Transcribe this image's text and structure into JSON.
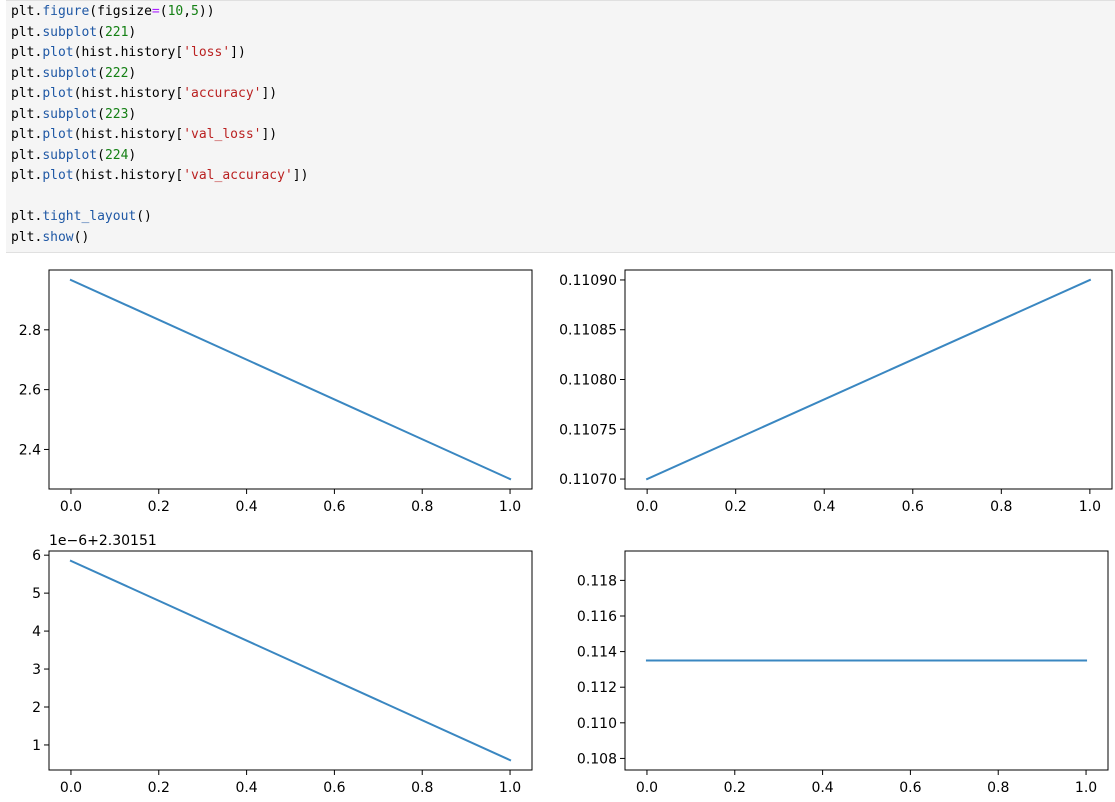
{
  "code_cell": {
    "lines": [
      [
        [
          "obj",
          "plt."
        ],
        [
          "func",
          "figure"
        ],
        [
          "brack",
          "("
        ],
        [
          "obj",
          "figsize"
        ],
        [
          "op",
          "="
        ],
        [
          "brack",
          "("
        ],
        [
          "num",
          "10"
        ],
        [
          "obj",
          ","
        ],
        [
          "num",
          "5"
        ],
        [
          "brack",
          "))"
        ]
      ],
      [
        [
          "obj",
          "plt."
        ],
        [
          "func",
          "subplot"
        ],
        [
          "brack",
          "("
        ],
        [
          "num",
          "221"
        ],
        [
          "brack",
          ")"
        ]
      ],
      [
        [
          "obj",
          "plt."
        ],
        [
          "func",
          "plot"
        ],
        [
          "brack",
          "("
        ],
        [
          "obj",
          "hist.history"
        ],
        [
          "brack",
          "["
        ],
        [
          "str",
          "'loss'"
        ],
        [
          "brack",
          "])"
        ]
      ],
      [
        [
          "obj",
          "plt."
        ],
        [
          "func",
          "subplot"
        ],
        [
          "brack",
          "("
        ],
        [
          "num",
          "222"
        ],
        [
          "brack",
          ")"
        ]
      ],
      [
        [
          "obj",
          "plt."
        ],
        [
          "func",
          "plot"
        ],
        [
          "brack",
          "("
        ],
        [
          "obj",
          "hist.history"
        ],
        [
          "brack",
          "["
        ],
        [
          "str",
          "'accuracy'"
        ],
        [
          "brack",
          "])"
        ]
      ],
      [
        [
          "obj",
          "plt."
        ],
        [
          "func",
          "subplot"
        ],
        [
          "brack",
          "("
        ],
        [
          "num",
          "223"
        ],
        [
          "brack",
          ")"
        ]
      ],
      [
        [
          "obj",
          "plt."
        ],
        [
          "func",
          "plot"
        ],
        [
          "brack",
          "("
        ],
        [
          "obj",
          "hist.history"
        ],
        [
          "brack",
          "["
        ],
        [
          "str",
          "'val_loss'"
        ],
        [
          "brack",
          "])"
        ]
      ],
      [
        [
          "obj",
          "plt."
        ],
        [
          "func",
          "subplot"
        ],
        [
          "brack",
          "("
        ],
        [
          "num",
          "224"
        ],
        [
          "brack",
          ")"
        ]
      ],
      [
        [
          "obj",
          "plt."
        ],
        [
          "func",
          "plot"
        ],
        [
          "brack",
          "("
        ],
        [
          "obj",
          "hist.history"
        ],
        [
          "brack",
          "["
        ],
        [
          "str",
          "'val_accuracy'"
        ],
        [
          "brack",
          "])"
        ]
      ],
      [],
      [
        [
          "obj",
          "plt."
        ],
        [
          "func",
          "tight_layout"
        ],
        [
          "brack",
          "()"
        ]
      ],
      [
        [
          "obj",
          "plt."
        ],
        [
          "func",
          "show"
        ],
        [
          "brack",
          "()"
        ]
      ]
    ]
  },
  "colors": {
    "line": "#3a87c1",
    "axes": "#000000",
    "code_background": "#f5f5f5"
  },
  "chart_data": [
    {
      "type": "line",
      "title": "",
      "xlabel": "",
      "ylabel": "",
      "x": [
        0.0,
        1.0
      ],
      "series": [
        {
          "values": [
            2.9666,
            2.3011
          ]
        }
      ],
      "xlim": [
        -0.05,
        1.05
      ],
      "ylim": [
        2.2678,
        3.0
      ],
      "xticks": [
        0.0,
        0.2,
        0.4,
        0.6,
        0.8,
        1.0
      ],
      "xtick_labels": [
        "0.0",
        "0.2",
        "0.4",
        "0.6",
        "0.8",
        "1.0"
      ],
      "yticks": [
        2.4,
        2.6,
        2.8
      ],
      "ytick_labels": [
        "2.4",
        "2.6",
        "2.8"
      ],
      "offset_text": "",
      "grid": false
    },
    {
      "type": "line",
      "title": "",
      "xlabel": "",
      "ylabel": "",
      "x": [
        0.0,
        1.0
      ],
      "series": [
        {
          "values": [
            0.1107,
            0.1109
          ]
        }
      ],
      "xlim": [
        -0.05,
        1.05
      ],
      "ylim": [
        0.11069,
        0.11091
      ],
      "xticks": [
        0.0,
        0.2,
        0.4,
        0.6,
        0.8,
        1.0
      ],
      "xtick_labels": [
        "0.0",
        "0.2",
        "0.4",
        "0.6",
        "0.8",
        "1.0"
      ],
      "yticks": [
        0.1107,
        0.11075,
        0.1108,
        0.11085,
        0.1109
      ],
      "ytick_labels": [
        "0.11070",
        "0.11075",
        "0.11080",
        "0.11085",
        "0.11090"
      ],
      "offset_text": "",
      "grid": false
    },
    {
      "type": "line",
      "title": "",
      "xlabel": "",
      "ylabel": "",
      "x": [
        0.0,
        1.0
      ],
      "series": [
        {
          "values": [
            5.85,
            0.6
          ]
        }
      ],
      "xlim": [
        -0.05,
        1.05
      ],
      "ylim": [
        0.34,
        6.11
      ],
      "xticks": [
        0.0,
        0.2,
        0.4,
        0.6,
        0.8,
        1.0
      ],
      "xtick_labels": [
        "0.0",
        "0.2",
        "0.4",
        "0.6",
        "0.8",
        "1.0"
      ],
      "yticks": [
        1,
        2,
        3,
        4,
        5,
        6
      ],
      "ytick_labels": [
        "1",
        "2",
        "3",
        "4",
        "5",
        "6"
      ],
      "offset_text": "1e−6+2.30151",
      "grid": false
    },
    {
      "type": "line",
      "title": "",
      "xlabel": "",
      "ylabel": "",
      "x": [
        0.0,
        1.0
      ],
      "series": [
        {
          "values": [
            0.1135,
            0.1135
          ]
        }
      ],
      "xlim": [
        -0.05,
        1.05
      ],
      "ylim": [
        0.10735,
        0.11965
      ],
      "xticks": [
        0.0,
        0.2,
        0.4,
        0.6,
        0.8,
        1.0
      ],
      "xtick_labels": [
        "0.0",
        "0.2",
        "0.4",
        "0.6",
        "0.8",
        "1.0"
      ],
      "yticks": [
        0.108,
        0.11,
        0.112,
        0.114,
        0.116,
        0.118
      ],
      "ytick_labels": [
        "0.108",
        "0.110",
        "0.112",
        "0.114",
        "0.116",
        "0.118"
      ],
      "offset_text": "",
      "grid": false
    }
  ]
}
